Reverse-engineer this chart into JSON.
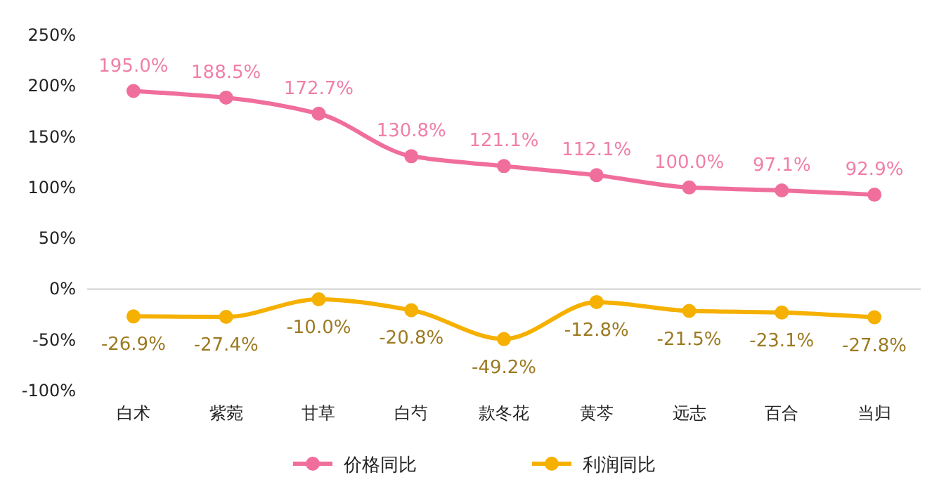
{
  "chart_data": {
    "type": "line",
    "categories": [
      "白术",
      "紫菀",
      "甘草",
      "白芍",
      "款冬花",
      "黄芩",
      "远志",
      "百合",
      "当归"
    ],
    "series": [
      {
        "name": "价格同比",
        "color": "#f06e9c",
        "values": [
          195.0,
          188.5,
          172.7,
          130.8,
          121.1,
          112.1,
          100.0,
          97.1,
          92.9
        ],
        "value_labels": [
          "195.0%",
          "188.5%",
          "172.7%",
          "130.8%",
          "121.1%",
          "112.1%",
          "100.0%",
          "97.1%",
          "92.9%"
        ]
      },
      {
        "name": "利润同比",
        "color": "#f5b000",
        "values": [
          -26.9,
          -27.4,
          -10.0,
          -20.8,
          -49.2,
          -12.8,
          -21.5,
          -23.1,
          -27.8
        ],
        "value_labels": [
          "-26.9%",
          "-27.4%",
          "-10.0%",
          "-20.8%",
          "-49.2%",
          "-12.8%",
          "-21.5%",
          "-23.1%",
          "-27.8%"
        ]
      }
    ],
    "ylim": [
      -100,
      250
    ],
    "yticks": [
      {
        "value": 250,
        "label": "250%"
      },
      {
        "value": 200,
        "label": "200%"
      },
      {
        "value": 150,
        "label": "150%"
      },
      {
        "value": 100,
        "label": "100%"
      },
      {
        "value": 50,
        "label": "50%"
      },
      {
        "value": 0,
        "label": "0%"
      },
      {
        "value": -50,
        "label": "-50%"
      },
      {
        "value": -100,
        "label": "-100%"
      }
    ],
    "marker": "circle",
    "legend": "bottom"
  }
}
